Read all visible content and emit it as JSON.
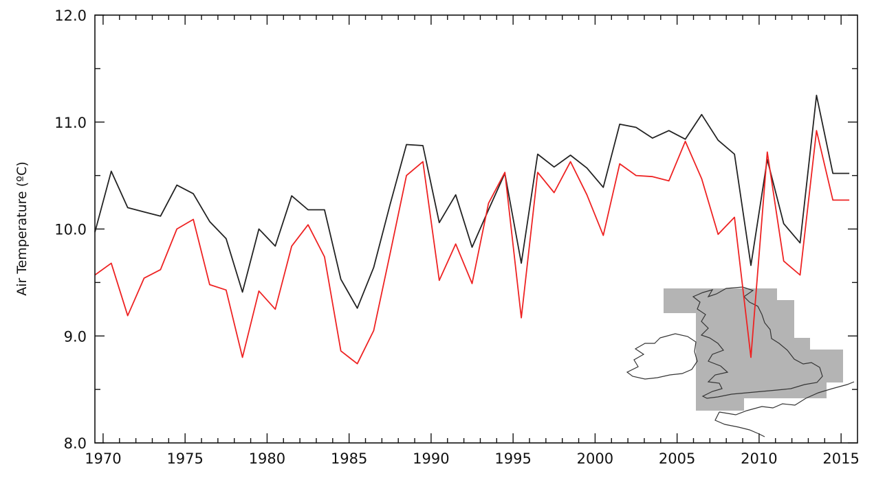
{
  "chart_data": {
    "type": "line",
    "title": "",
    "xlabel": "",
    "ylabel": "Air Temperature (ºC)",
    "xlim": [
      1969.5,
      2016
    ],
    "ylim": [
      8.0,
      12.0
    ],
    "grid": false,
    "legend": "none",
    "x_ticks": [
      1970,
      1975,
      1980,
      1985,
      1990,
      1995,
      2000,
      2005,
      2010,
      2015
    ],
    "x_tick_labels": [
      "1970",
      "1975",
      "1980",
      "1985",
      "1990",
      "1995",
      "2000",
      "2005",
      "2010",
      "2015"
    ],
    "y_ticks": [
      8.0,
      9.0,
      10.0,
      11.0,
      12.0
    ],
    "y_tick_labels": [
      "8.0",
      "9.0",
      "10.0",
      "11.0",
      "12.0"
    ],
    "x": [
      1969.5,
      1970.5,
      1971.5,
      1972.5,
      1973.5,
      1974.5,
      1975.5,
      1976.5,
      1977.5,
      1978.5,
      1979.5,
      1980.5,
      1981.5,
      1982.5,
      1983.5,
      1984.5,
      1985.5,
      1986.5,
      1987.5,
      1988.5,
      1989.5,
      1990.5,
      1991.5,
      1992.5,
      1993.5,
      1994.5,
      1995.5,
      1996.5,
      1997.5,
      1998.5,
      1999.5,
      2000.5,
      2001.5,
      2002.5,
      2003.5,
      2004.5,
      2005.5,
      2006.5,
      2007.5,
      2008.5,
      2009.5,
      2010.5,
      2011.5,
      2012.5,
      2013.5,
      2014.5,
      2015.5
    ],
    "series": [
      {
        "color": "#222222",
        "values": [
          9.97,
          10.54,
          10.2,
          10.16,
          10.12,
          10.41,
          10.33,
          10.07,
          9.91,
          9.41,
          10.0,
          9.84,
          10.31,
          10.18,
          10.18,
          9.53,
          9.26,
          9.64,
          10.23,
          10.79,
          10.78,
          10.06,
          10.32,
          9.83,
          10.18,
          10.52,
          9.68,
          10.7,
          10.58,
          10.69,
          10.57,
          10.39,
          10.98,
          10.95,
          10.85,
          10.92,
          10.84,
          11.07,
          10.83,
          10.7,
          9.66,
          10.65,
          10.05,
          9.87,
          11.25,
          10.52,
          10.52
        ]
      },
      {
        "color": "#ee2222",
        "values": [
          9.57,
          9.68,
          9.19,
          9.54,
          9.62,
          10.0,
          10.09,
          9.48,
          9.43,
          8.8,
          9.42,
          9.25,
          9.84,
          10.04,
          9.74,
          8.86,
          8.74,
          9.05,
          9.77,
          10.5,
          10.63,
          9.52,
          9.86,
          9.49,
          10.24,
          10.53,
          9.17,
          10.53,
          10.34,
          10.63,
          10.32,
          9.94,
          10.61,
          10.5,
          10.49,
          10.45,
          10.82,
          10.47,
          9.95,
          10.11,
          8.8,
          10.72,
          9.7,
          9.57,
          10.92,
          10.27,
          10.27
        ]
      }
    ]
  },
  "inset": {
    "map_icon": "british-isles-region-map",
    "region_color": "#b4b4b4",
    "outline_color": "#333333"
  }
}
